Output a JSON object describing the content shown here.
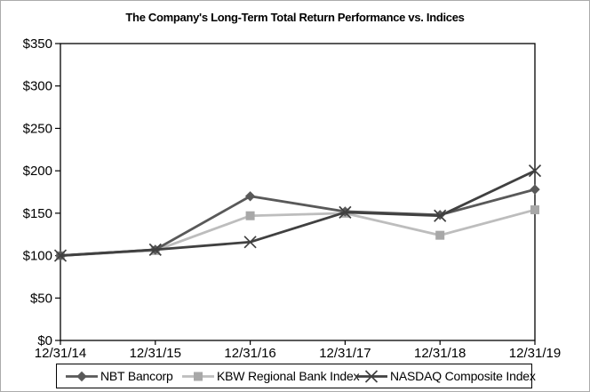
{
  "window": {
    "background_color": "#ffffff",
    "frame_border_color": "#ababab",
    "axis_color": "#000000",
    "legend_border_color": "#000000"
  },
  "chart_data": {
    "type": "line",
    "title": "The Company's Long-Term Total Return Performance vs. Indices",
    "xlabel": "",
    "ylabel": "",
    "categories": [
      "12/31/14",
      "12/31/15",
      "12/31/16",
      "12/31/17",
      "12/31/18",
      "12/31/19"
    ],
    "series": [
      {
        "name": "NBT Bancorp",
        "marker": "diamond",
        "color": "#595959",
        "marker_color": "#595959",
        "values": [
          100,
          107,
          170,
          152,
          148,
          178
        ]
      },
      {
        "name": "KBW Regional Bank Index",
        "marker": "square",
        "color": "#bdbdbd",
        "marker_color": "#a8a8a8",
        "values": [
          100,
          106,
          147,
          150,
          124,
          154
        ]
      },
      {
        "name": "NASDAQ Composite Index",
        "marker": "x",
        "color": "#404040",
        "marker_color": "#404040",
        "values": [
          100,
          107,
          116,
          151,
          147,
          200
        ]
      }
    ],
    "draw_order": [
      1,
      0,
      2
    ],
    "ylim": [
      0,
      350
    ],
    "y_tick_step": 50,
    "y_tick_labels": [
      "$0",
      "$50",
      "$100",
      "$150",
      "$200",
      "$250",
      "$300",
      "$350"
    ],
    "grid": false,
    "legend_position": "bottom"
  }
}
